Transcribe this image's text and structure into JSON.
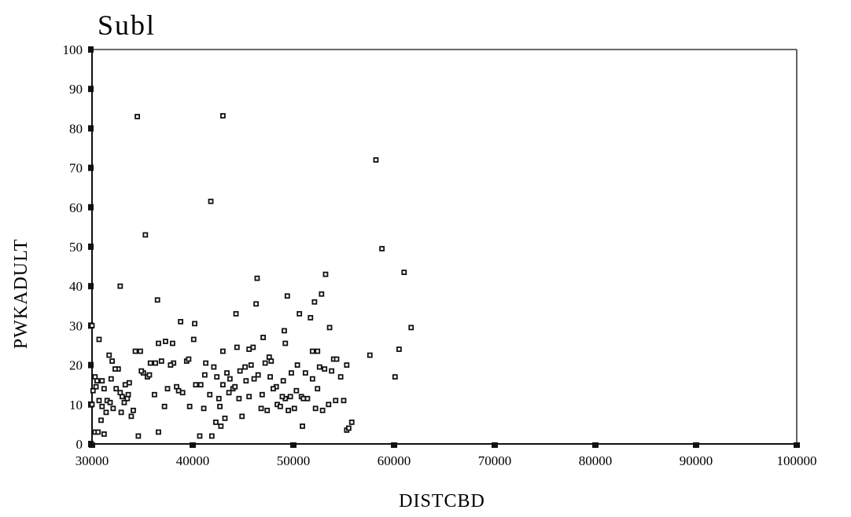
{
  "chart_data": {
    "type": "scatter",
    "title": "Subl",
    "xlabel": "DISTCBD",
    "ylabel": "PWKADULT",
    "xlim": [
      30000,
      100000
    ],
    "ylim": [
      0,
      100
    ],
    "xticks": [
      "30000",
      "40000",
      "50000",
      "60000",
      "70000",
      "80000",
      "90000",
      "100000"
    ],
    "yticks": [
      "0",
      "10",
      "20",
      "30",
      "40",
      "50",
      "60",
      "70",
      "80",
      "90",
      "100"
    ],
    "grid": false,
    "legend": "none",
    "points": [
      [
        34500,
        83
      ],
      [
        43000,
        83.2
      ],
      [
        41800,
        61.5
      ],
      [
        35300,
        53
      ],
      [
        32800,
        40
      ],
      [
        36500,
        36.5
      ],
      [
        38800,
        31
      ],
      [
        40200,
        30.5
      ],
      [
        58200,
        72
      ],
      [
        58800,
        49.5
      ],
      [
        61000,
        43.5
      ],
      [
        61700,
        29.5
      ],
      [
        60500,
        24
      ],
      [
        60100,
        17
      ],
      [
        57600,
        22.5
      ],
      [
        53200,
        43
      ],
      [
        53600,
        29.5
      ],
      [
        52800,
        38
      ],
      [
        52100,
        36
      ],
      [
        51700,
        32
      ],
      [
        51900,
        23.5
      ],
      [
        52400,
        23.5
      ],
      [
        53100,
        19
      ],
      [
        54000,
        21.5
      ],
      [
        55300,
        20
      ],
      [
        50600,
        33
      ],
      [
        49400,
        37.5
      ],
      [
        49100,
        28.7
      ],
      [
        49200,
        25.5
      ],
      [
        46400,
        42
      ],
      [
        46300,
        35.5
      ],
      [
        47000,
        27
      ],
      [
        46000,
        24.5
      ],
      [
        44300,
        33
      ],
      [
        44400,
        24.5
      ],
      [
        43000,
        23.5
      ],
      [
        45600,
        24
      ],
      [
        42100,
        19.5
      ],
      [
        43400,
        18
      ],
      [
        44700,
        18.5
      ],
      [
        45800,
        20
      ],
      [
        47200,
        20.5
      ],
      [
        47600,
        22
      ],
      [
        48300,
        14.5
      ],
      [
        49000,
        16
      ],
      [
        49800,
        18
      ],
      [
        50400,
        20
      ],
      [
        51200,
        18
      ],
      [
        51900,
        16.5
      ],
      [
        52400,
        14
      ],
      [
        50800,
        12
      ],
      [
        49700,
        12
      ],
      [
        49200,
        11.5
      ],
      [
        48400,
        10
      ],
      [
        47400,
        8.5
      ],
      [
        46800,
        9
      ],
      [
        45600,
        12
      ],
      [
        44600,
        11.5
      ],
      [
        43600,
        13
      ],
      [
        43000,
        15
      ],
      [
        42700,
        9.5
      ],
      [
        42300,
        5.5
      ],
      [
        42800,
        4.5
      ],
      [
        41900,
        2
      ],
      [
        40700,
        2
      ],
      [
        41100,
        9
      ],
      [
        40300,
        15
      ],
      [
        39400,
        21
      ],
      [
        39600,
        21.5
      ],
      [
        38100,
        20.5
      ],
      [
        38400,
        14.5
      ],
      [
        38600,
        13.5
      ],
      [
        37800,
        20
      ],
      [
        37300,
        26
      ],
      [
        36900,
        21
      ],
      [
        36600,
        25.5
      ],
      [
        36300,
        20.5
      ],
      [
        35800,
        20.5
      ],
      [
        35500,
        17
      ],
      [
        35100,
        18
      ],
      [
        34800,
        23.5
      ],
      [
        34300,
        23.5
      ],
      [
        34100,
        8.5
      ],
      [
        34600,
        2
      ],
      [
        33900,
        7
      ],
      [
        33600,
        12.5
      ],
      [
        33300,
        15
      ],
      [
        33000,
        12
      ],
      [
        32800,
        13
      ],
      [
        32600,
        19
      ],
      [
        32300,
        19
      ],
      [
        32000,
        21
      ],
      [
        31900,
        16.5
      ],
      [
        31700,
        22.5
      ],
      [
        31500,
        11
      ],
      [
        31200,
        14
      ],
      [
        31000,
        9.5
      ],
      [
        30700,
        26.5
      ],
      [
        30700,
        11
      ],
      [
        30500,
        16
      ],
      [
        30300,
        17
      ],
      [
        30100,
        13.5
      ],
      [
        30000,
        10
      ],
      [
        30000,
        30
      ],
      [
        30300,
        3
      ],
      [
        30600,
        3
      ],
      [
        31200,
        2.5
      ],
      [
        30400,
        14.5
      ],
      [
        31000,
        16
      ],
      [
        31800,
        10.5
      ],
      [
        32400,
        14
      ],
      [
        33200,
        10.5
      ],
      [
        33700,
        15.5
      ],
      [
        34900,
        18.5
      ],
      [
        36200,
        12.5
      ],
      [
        36600,
        3
      ],
      [
        37200,
        9.5
      ],
      [
        39700,
        9.5
      ],
      [
        40100,
        26.5
      ],
      [
        41200,
        17.5
      ],
      [
        41700,
        12.5
      ],
      [
        42600,
        11.5
      ],
      [
        43200,
        6.5
      ],
      [
        44000,
        14
      ],
      [
        44900,
        7
      ],
      [
        45300,
        16
      ],
      [
        46100,
        16.5
      ],
      [
        46900,
        12.5
      ],
      [
        47700,
        17
      ],
      [
        48000,
        14
      ],
      [
        48700,
        9.5
      ],
      [
        49500,
        8.5
      ],
      [
        50100,
        9
      ],
      [
        50900,
        4.5
      ],
      [
        51400,
        11.5
      ],
      [
        52200,
        9
      ],
      [
        52900,
        8.5
      ],
      [
        53500,
        10
      ],
      [
        54200,
        11
      ],
      [
        55000,
        11
      ],
      [
        55300,
        3.5
      ],
      [
        55500,
        4
      ],
      [
        55800,
        5.5
      ],
      [
        54700,
        17
      ],
      [
        54300,
        21.5
      ],
      [
        53800,
        18.5
      ],
      [
        52600,
        19.5
      ],
      [
        51000,
        11.5
      ],
      [
        50300,
        13.5
      ],
      [
        48900,
        12
      ],
      [
        47800,
        21
      ],
      [
        46500,
        17.5
      ],
      [
        45200,
        19.5
      ],
      [
        44200,
        14.5
      ],
      [
        43700,
        16.5
      ],
      [
        42400,
        17
      ],
      [
        41300,
        20.5
      ],
      [
        40800,
        15
      ],
      [
        39000,
        13
      ],
      [
        38000,
        25.5
      ],
      [
        37500,
        14
      ],
      [
        35700,
        17.5
      ],
      [
        33500,
        11.5
      ],
      [
        32900,
        8
      ],
      [
        31400,
        8
      ],
      [
        30900,
        6
      ],
      [
        32100,
        9
      ]
    ]
  }
}
